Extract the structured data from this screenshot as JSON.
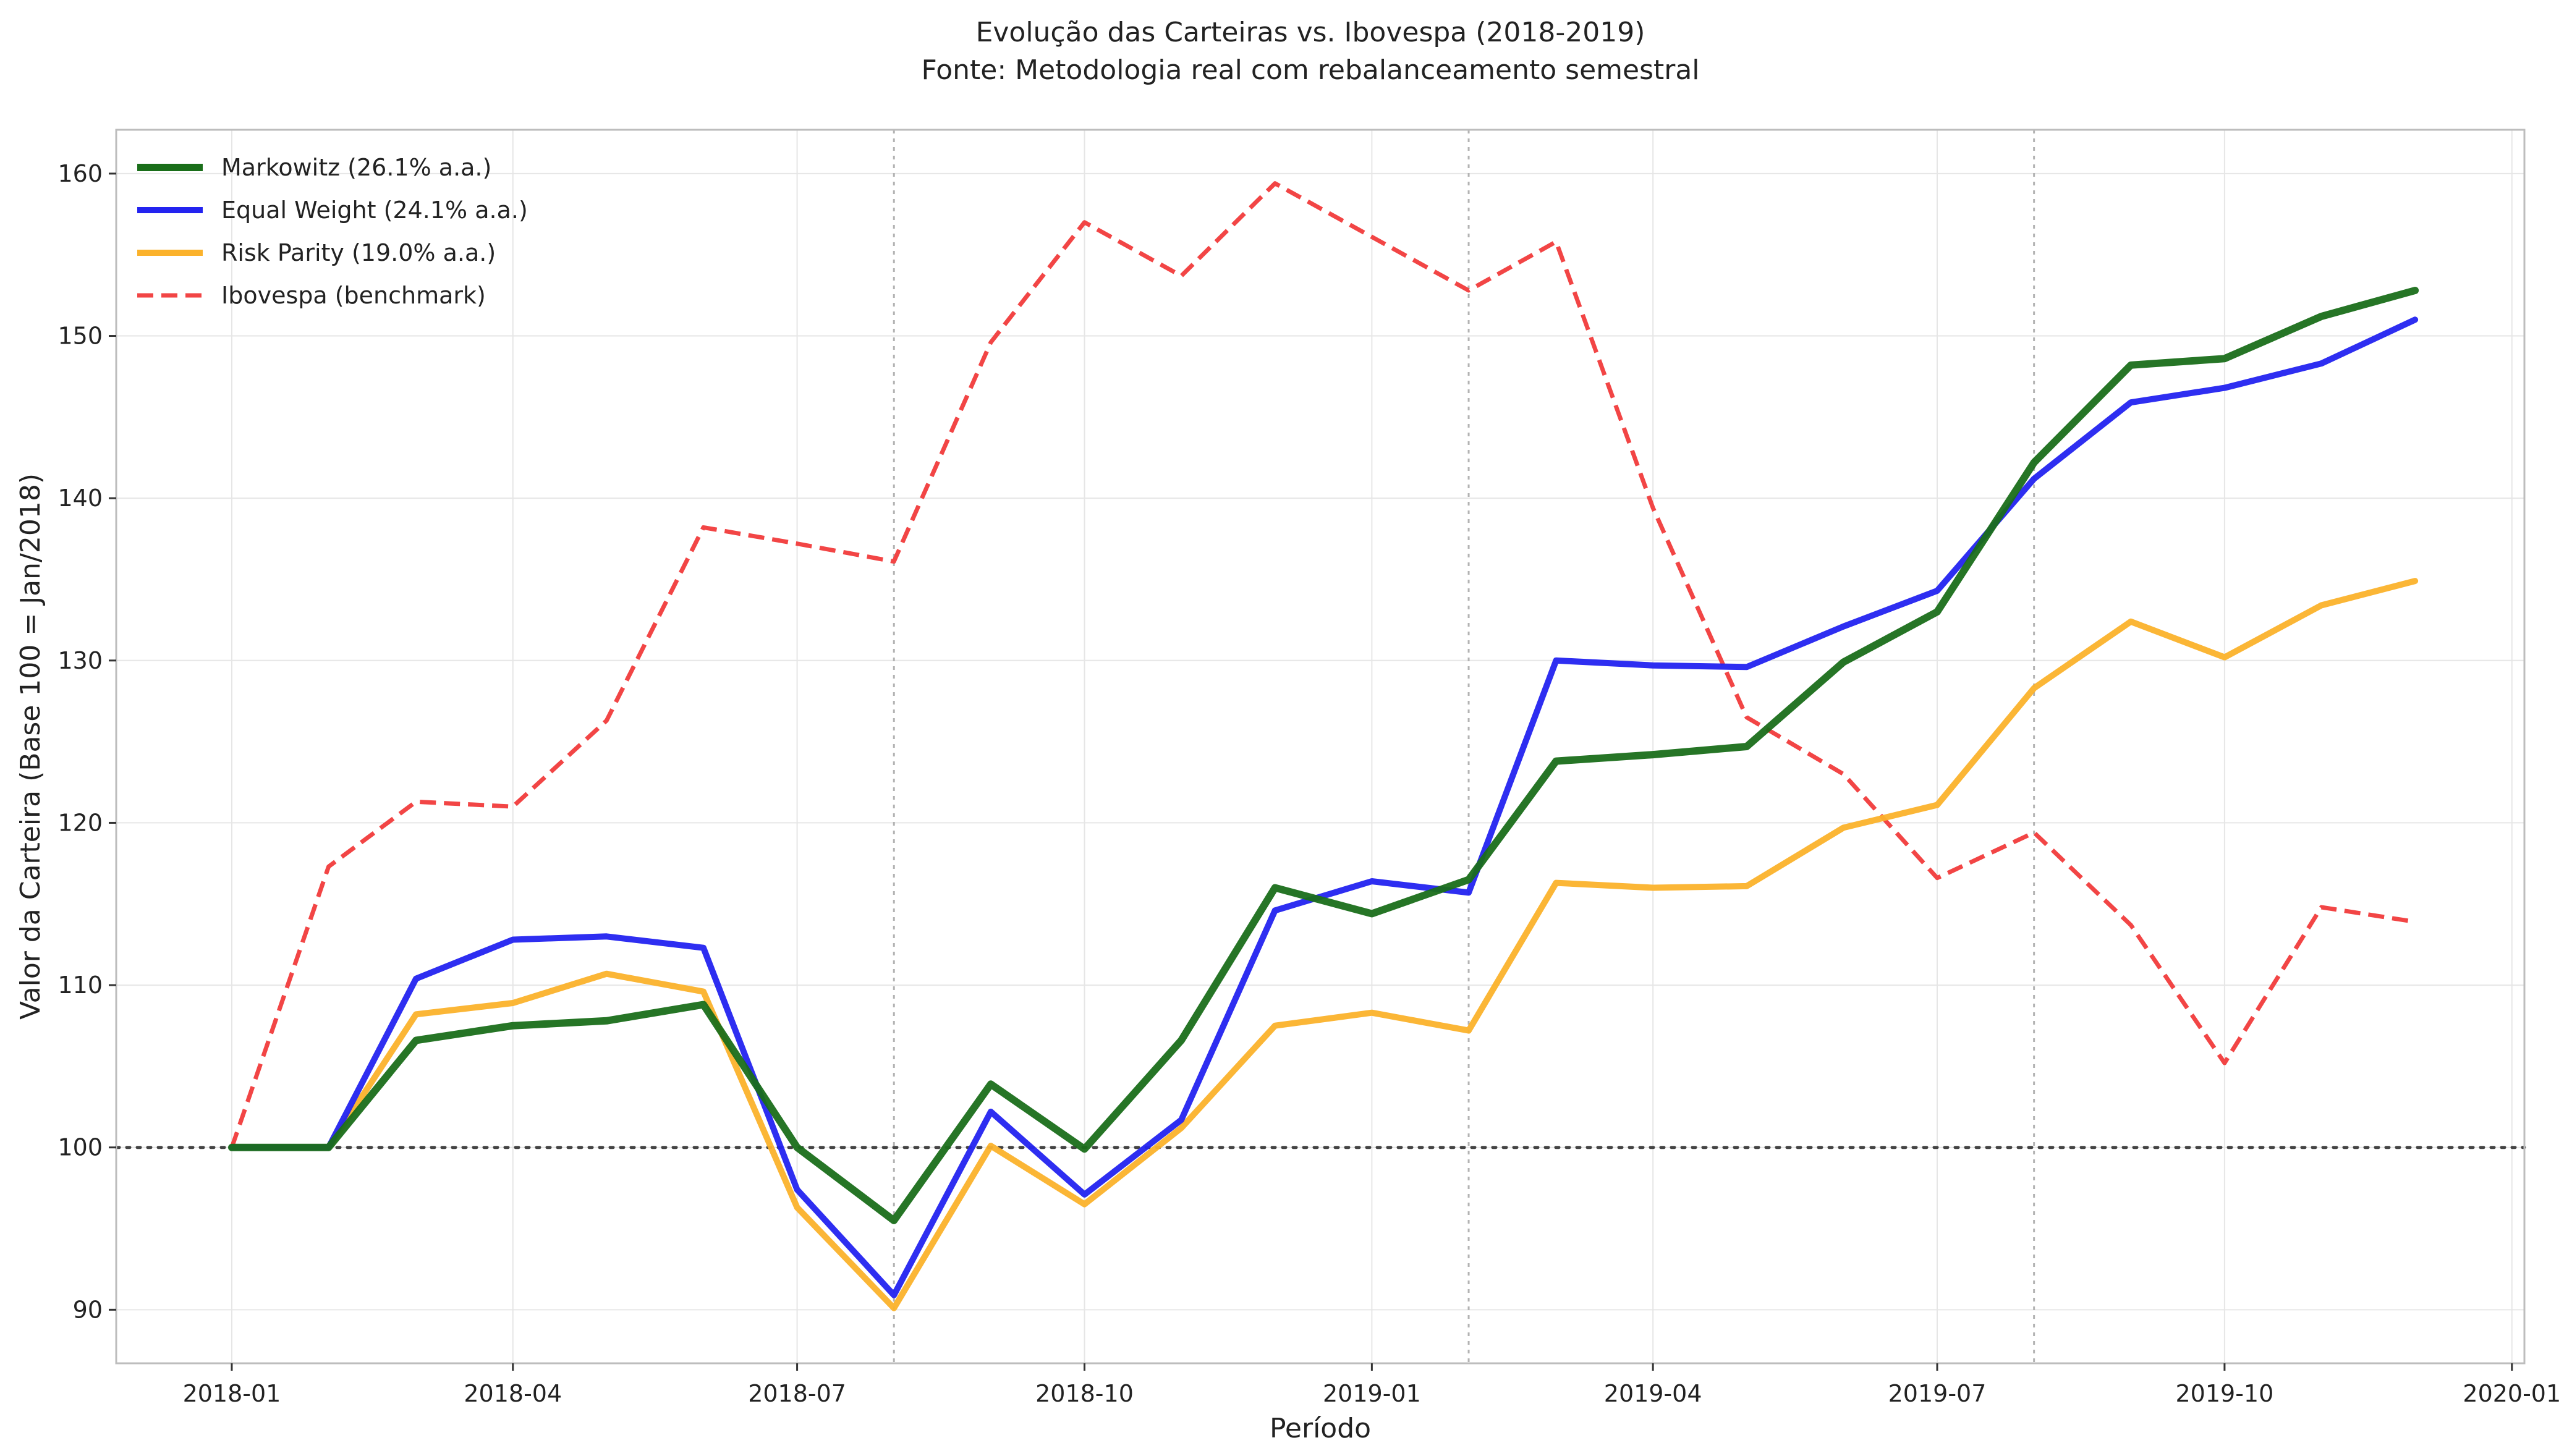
{
  "chart_data": {
    "type": "line",
    "title": "Evolução das Carteiras vs. Ibovespa (2018-2019)",
    "subtitle": "Fonte: Metodologia real com rebalanceamento semestral",
    "xlabel": "Período",
    "ylabel": "Valor da Carteira (Base 100 = Jan/2018)",
    "x": [
      "2018-01",
      "2018-02",
      "2018-03",
      "2018-04",
      "2018-05",
      "2018-06",
      "2018-07",
      "2018-08",
      "2018-09",
      "2018-10",
      "2018-11",
      "2018-12",
      "2019-01",
      "2019-02",
      "2019-03",
      "2019-04",
      "2019-05",
      "2019-06",
      "2019-07",
      "2019-08",
      "2019-09",
      "2019-10",
      "2019-11",
      "2019-12"
    ],
    "xlim": [
      "2017-11-25",
      "2020-01-05"
    ],
    "ylim": [
      86.7,
      162.7
    ],
    "x_ticks": [
      "2018-01",
      "2018-04",
      "2018-07",
      "2018-10",
      "2019-01",
      "2019-04",
      "2019-07",
      "2019-10",
      "2020-01"
    ],
    "y_ticks": [
      90,
      100,
      110,
      120,
      130,
      140,
      150,
      160
    ],
    "grid": true,
    "legend_position": "top-left",
    "reference_line_y": 100,
    "rebalance_dates": [
      "2018-08",
      "2019-02",
      "2019-08"
    ],
    "series": [
      {
        "name": "Markowitz (26.1% a.a.)",
        "color": "#1a6e1a",
        "style": "solid",
        "width": 12,
        "values": [
          100,
          100,
          106.6,
          107.5,
          107.8,
          108.8,
          100.0,
          95.5,
          103.9,
          99.9,
          106.6,
          116.0,
          114.4,
          116.5,
          123.8,
          124.2,
          124.7,
          129.9,
          133.0,
          142.2,
          148.2,
          148.6,
          151.2,
          152.8
        ]
      },
      {
        "name": "Equal Weight (24.1% a.a.)",
        "color": "#2323f0",
        "style": "solid",
        "width": 10,
        "values": [
          100,
          100,
          110.4,
          112.8,
          113.0,
          112.3,
          97.4,
          90.9,
          102.2,
          97.1,
          101.7,
          114.6,
          116.4,
          115.7,
          130.0,
          129.7,
          129.6,
          132.1,
          134.3,
          141.2,
          145.9,
          146.8,
          148.3,
          151.0
        ]
      },
      {
        "name": "Risk Parity (19.0% a.a.)",
        "color": "#fbb22b",
        "style": "solid",
        "width": 10,
        "values": [
          100,
          100,
          108.2,
          108.9,
          110.7,
          109.6,
          96.3,
          90.1,
          100.1,
          96.5,
          101.2,
          107.5,
          108.3,
          107.2,
          116.3,
          116.0,
          116.1,
          119.7,
          121.1,
          128.3,
          132.4,
          130.2,
          133.4,
          134.9
        ]
      },
      {
        "name": "Ibovespa (benchmark)",
        "color": "#f24545",
        "style": "dashed",
        "width": 7,
        "values": [
          100,
          117.3,
          121.3,
          121.0,
          126.3,
          138.2,
          137.2,
          136.1,
          149.6,
          157.0,
          153.7,
          159.4,
          156.1,
          152.8,
          155.8,
          139.4,
          126.5,
          123.0,
          116.6,
          119.4,
          113.7,
          105.2,
          114.8,
          113.9
        ]
      }
    ]
  }
}
